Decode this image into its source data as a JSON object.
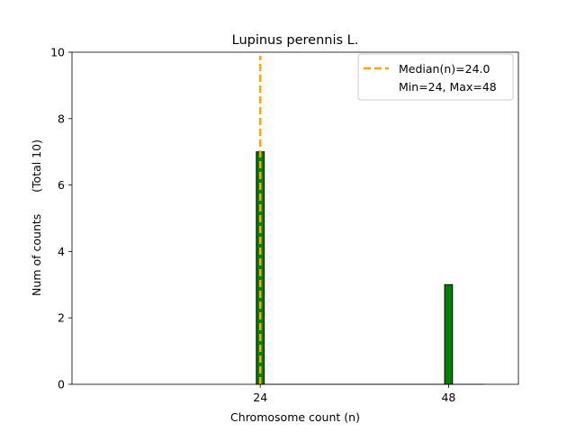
{
  "chart_data": {
    "type": "bar",
    "title": "Lupinus perennis L.",
    "xlabel": "Chromosome count (n)",
    "ylabel": "Num of counts      (Total 10)",
    "bars": [
      {
        "x": 24,
        "value": 7
      },
      {
        "x": 48,
        "value": 3
      }
    ],
    "xticks": [
      24,
      48
    ],
    "yticks": [
      0,
      2,
      4,
      6,
      8,
      10
    ],
    "xlim": [
      0,
      56.9
    ],
    "ylim": [
      0,
      10
    ],
    "bar_width": 1,
    "bar_color": "#008000",
    "bar_edge_color": "#000000",
    "median_value": 24,
    "median_color": "#ffa500",
    "legend": {
      "position": "top-right",
      "entries": [
        {
          "label": "Median(n)=24.0",
          "style": "dashed-line"
        },
        {
          "label": "Min=24, Max=48",
          "style": "none"
        }
      ]
    },
    "grid": false
  }
}
